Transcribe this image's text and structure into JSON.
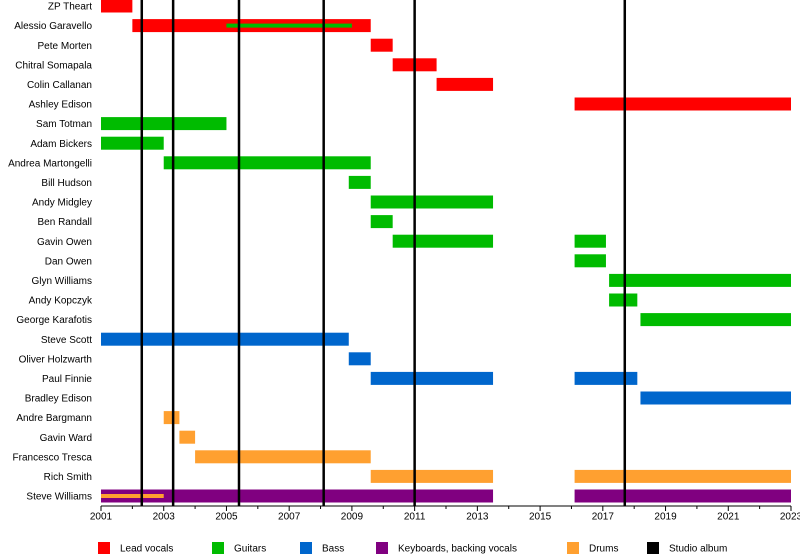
{
  "chart_data": {
    "type": "timeline",
    "categories": [
      "ZP Theart",
      "Alessio Garavello",
      "Pete Morten",
      "Chitral Somapala",
      "Colin Callanan",
      "Ashley Edison",
      "Sam Totman",
      "Adam Bickers",
      "Andrea Martongelli",
      "Bill Hudson",
      "Andy Midgley",
      "Ben Randall",
      "Gavin Owen",
      "Dan Owen",
      "Glyn Williams",
      "Andy Kopczyk",
      "George Karafotis",
      "Steve Scott",
      "Oliver Holzwarth",
      "Paul Finnie",
      "Bradley Edison",
      "Andre Bargmann",
      "Gavin Ward",
      "Francesco Tresca",
      "Rich Smith",
      "Steve Williams"
    ],
    "series": [
      {
        "name": "Lead vocals",
        "color": "#ff0000",
        "values": [
          [
            [
              2001,
              2002
            ]
          ],
          [
            [
              2002,
              2009.6
            ]
          ],
          [
            [
              2009.6,
              2010.3
            ]
          ],
          [
            [
              2010.3,
              2011.7
            ]
          ],
          [
            [
              2011.7,
              2013.5
            ]
          ],
          [
            [
              2016.1,
              2023
            ]
          ],
          null,
          null,
          null,
          null,
          null,
          null,
          null,
          null,
          null,
          null,
          null,
          null,
          null,
          null,
          null,
          null,
          null,
          null,
          null,
          null
        ]
      },
      {
        "name": "Guitars",
        "color": "#00bb00",
        "values": [
          null,
          [
            [
              2005,
              2009
            ]
          ],
          null,
          null,
          null,
          null,
          [
            [
              2001,
              2005
            ]
          ],
          [
            [
              2001,
              2003
            ]
          ],
          [
            [
              2003,
              2009.6
            ]
          ],
          [
            [
              2008.9,
              2009.6
            ]
          ],
          [
            [
              2009.6,
              2013.5
            ]
          ],
          [
            [
              2009.6,
              2010.3
            ]
          ],
          [
            [
              2010.3,
              2013.5
            ],
            [
              2016.1,
              2017.1
            ]
          ],
          [
            [
              2016.1,
              2017.1
            ]
          ],
          [
            [
              2017.2,
              2023
            ]
          ],
          [
            [
              2017.2,
              2018.1
            ]
          ],
          [
            [
              2018.2,
              2023
            ]
          ],
          null,
          null,
          null,
          null,
          null,
          null,
          null,
          null,
          null
        ]
      },
      {
        "name": "Bass",
        "color": "#0066cc",
        "values": [
          null,
          null,
          null,
          null,
          null,
          null,
          null,
          null,
          null,
          null,
          null,
          null,
          null,
          null,
          null,
          null,
          null,
          [
            [
              2001,
              2008.9
            ]
          ],
          [
            [
              2008.9,
              2009.6
            ]
          ],
          [
            [
              2009.6,
              2013.5
            ],
            [
              2016.1,
              2018.1
            ]
          ],
          [
            [
              2018.2,
              2023
            ]
          ],
          null,
          null,
          null,
          null,
          null
        ]
      },
      {
        "name": "Keyboards, backing vocals",
        "color": "#800080",
        "values": [
          null,
          null,
          null,
          null,
          null,
          null,
          null,
          null,
          null,
          null,
          null,
          null,
          null,
          null,
          null,
          null,
          null,
          null,
          null,
          null,
          null,
          null,
          null,
          null,
          null,
          [
            [
              2001,
              2013.5
            ],
            [
              2016.1,
              2023
            ]
          ]
        ]
      },
      {
        "name": "Drums",
        "color": "#ffa030",
        "values": [
          null,
          null,
          null,
          null,
          null,
          null,
          null,
          null,
          null,
          null,
          null,
          null,
          null,
          null,
          null,
          null,
          null,
          null,
          null,
          null,
          null,
          [
            [
              2003,
              2003.5
            ]
          ],
          [
            [
              2003.5,
              2004
            ]
          ],
          [
            [
              2004,
              2009.6
            ]
          ],
          [
            [
              2009.6,
              2013.5
            ],
            [
              2016.1,
              2023
            ]
          ],
          [
            [
              2001,
              2003
            ]
          ]
        ]
      }
    ],
    "studio_albums": {
      "name": "Studio album",
      "color": "#000000",
      "values": [
        2002.3,
        2003.3,
        2005.4,
        2008.1,
        2011,
        2017.7
      ]
    },
    "xlim": [
      2001,
      2023
    ],
    "xticks": [
      2001,
      2003,
      2005,
      2007,
      2009,
      2011,
      2013,
      2015,
      2017,
      2019,
      2021,
      2023
    ],
    "xminorticks": [
      2002,
      2004,
      2006,
      2008,
      2010,
      2012,
      2014,
      2016,
      2018,
      2020,
      2022
    ]
  }
}
